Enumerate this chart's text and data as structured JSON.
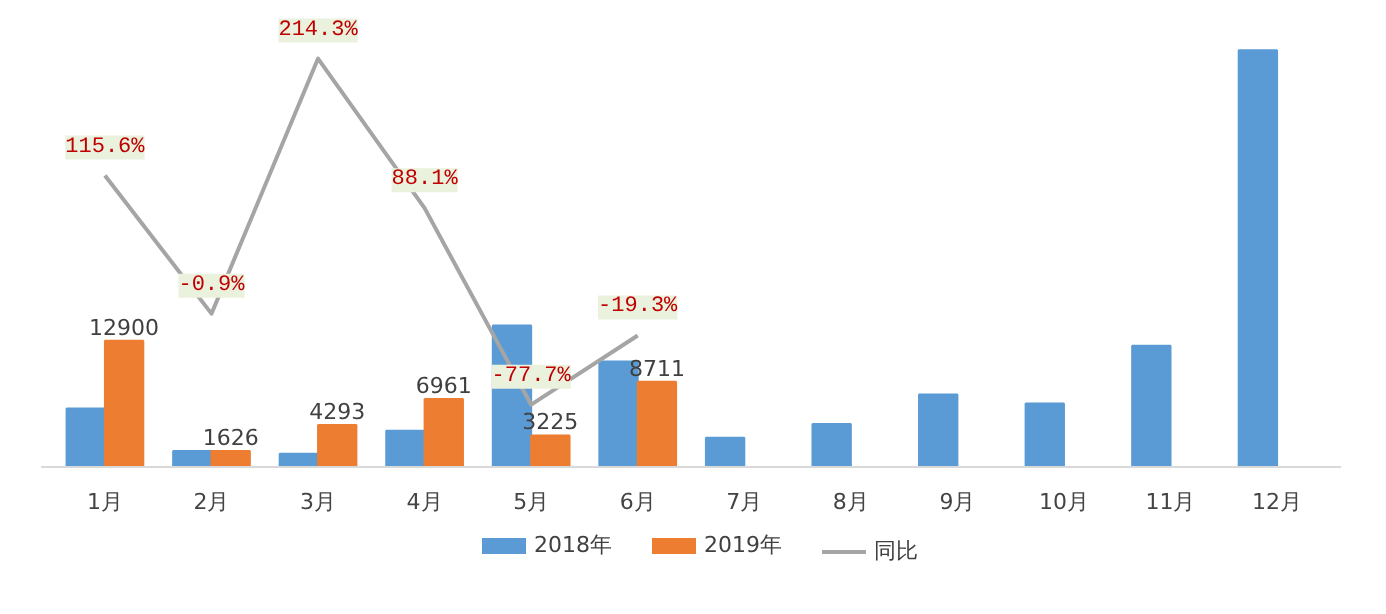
{
  "chart_data": {
    "type": "bar",
    "categories": [
      "1月",
      "2月",
      "3月",
      "4月",
      "5月",
      "6月",
      "7月",
      "8月",
      "9月",
      "10月",
      "11月",
      "12月"
    ],
    "series": [
      {
        "name": "2018年",
        "type": "bar",
        "color": "#5b9bd5",
        "values": [
          5983,
          1641,
          1366,
          3701,
          14462,
          10794,
          3000,
          4400,
          7400,
          6500,
          12400,
          42600
        ]
      },
      {
        "name": "2019年",
        "color": "#ed7d31",
        "values": [
          12900,
          1626,
          4293,
          6961,
          3225,
          8711,
          null,
          null,
          null,
          null,
          null,
          null
        ],
        "value_labels": [
          "12900",
          "1626",
          "4293",
          "6961",
          "3225",
          "8711",
          null,
          null,
          null,
          null,
          null,
          null
        ]
      },
      {
        "name": "同比",
        "type": "line",
        "axis": "y2",
        "color": "#a5a5a5",
        "values": [
          115.6,
          -0.9,
          214.3,
          88.1,
          -77.7,
          -19.3,
          null,
          null,
          null,
          null,
          null,
          null
        ],
        "value_labels": [
          "115.6%",
          "-0.9%",
          "214.3%",
          "88.1%",
          "-77.7%",
          "-19.3%",
          null,
          null,
          null,
          null,
          null,
          null
        ]
      }
    ],
    "legend": "bottom",
    "grid": false
  }
}
